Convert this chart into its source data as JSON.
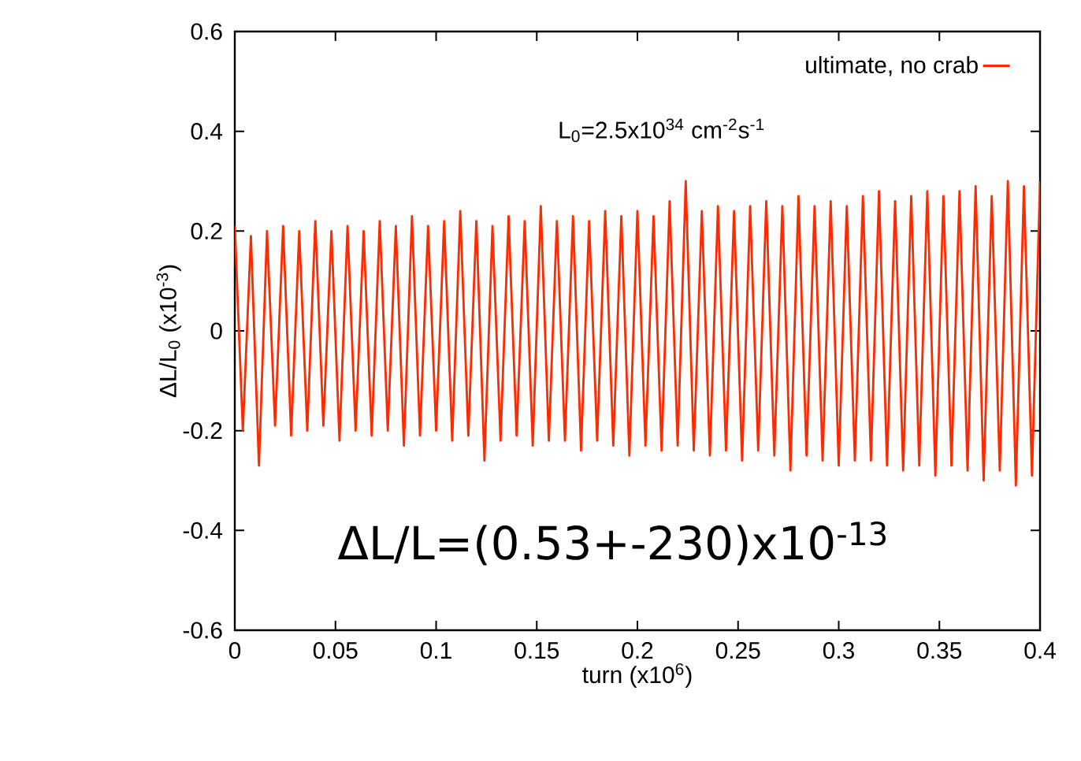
{
  "chart_data": {
    "type": "line",
    "xlabel": "turn (x10$^{6}$)",
    "ylabel": "ΔL/L$_{0}$ (x10$^{-3}$)",
    "annotations": [
      "L$_{0}$=2.5x10$^{34}$ cm$^{-2}$s$^{-1}$",
      "ΔL/L=(0.53+-230)x10$^{-13}$"
    ],
    "xlim": [
      0,
      0.4
    ],
    "ylim": [
      -0.6,
      0.6
    ],
    "xticks": [
      0,
      0.05,
      0.1,
      0.15,
      0.2,
      0.25,
      0.3,
      0.35,
      0.4
    ],
    "yticks": [
      -0.6,
      -0.4,
      -0.2,
      0,
      0.2,
      0.4,
      0.6
    ],
    "legend": "top right",
    "line_style": "solid",
    "series": [
      {
        "name": "ultimate, no crab",
        "color": "#ff2a00",
        "x": [
          0,
          0.004,
          0.008,
          0.012,
          0.016,
          0.02,
          0.024,
          0.028,
          0.032,
          0.036,
          0.04,
          0.044,
          0.048,
          0.052,
          0.056,
          0.06,
          0.064,
          0.068,
          0.072,
          0.076,
          0.08,
          0.084,
          0.088,
          0.092,
          0.096,
          0.1,
          0.104,
          0.108,
          0.112,
          0.116,
          0.12,
          0.124,
          0.128,
          0.132,
          0.136,
          0.14,
          0.144,
          0.148,
          0.152,
          0.156,
          0.16,
          0.164,
          0.168,
          0.172,
          0.176,
          0.18,
          0.184,
          0.188,
          0.192,
          0.196,
          0.2,
          0.204,
          0.208,
          0.212,
          0.216,
          0.22,
          0.224,
          0.228,
          0.232,
          0.236,
          0.24,
          0.244,
          0.248,
          0.252,
          0.256,
          0.26,
          0.264,
          0.268,
          0.272,
          0.276,
          0.28,
          0.284,
          0.288,
          0.292,
          0.296,
          0.3,
          0.304,
          0.308,
          0.312,
          0.316,
          0.32,
          0.324,
          0.328,
          0.332,
          0.336,
          0.34,
          0.344,
          0.348,
          0.352,
          0.356,
          0.36,
          0.364,
          0.368,
          0.372,
          0.376,
          0.38,
          0.384,
          0.388,
          0.392,
          0.396,
          0.4
        ],
        "values": [
          0.21,
          -0.2,
          0.19,
          -0.27,
          0.2,
          -0.19,
          0.21,
          -0.21,
          0.2,
          -0.2,
          0.22,
          -0.19,
          0.2,
          -0.22,
          0.21,
          -0.2,
          0.2,
          -0.21,
          0.22,
          -0.2,
          0.21,
          -0.23,
          0.23,
          -0.21,
          0.21,
          -0.2,
          0.22,
          -0.22,
          0.24,
          -0.21,
          0.22,
          -0.26,
          0.21,
          -0.22,
          0.23,
          -0.21,
          0.22,
          -0.23,
          0.25,
          -0.22,
          0.22,
          -0.22,
          0.23,
          -0.24,
          0.22,
          -0.22,
          0.24,
          -0.23,
          0.23,
          -0.25,
          0.24,
          -0.23,
          0.23,
          -0.24,
          0.26,
          -0.23,
          0.3,
          -0.24,
          0.24,
          -0.25,
          0.25,
          -0.24,
          0.24,
          -0.26,
          0.25,
          -0.24,
          0.26,
          -0.25,
          0.25,
          -0.28,
          0.27,
          -0.25,
          0.25,
          -0.26,
          0.26,
          -0.27,
          0.25,
          -0.26,
          0.27,
          -0.26,
          0.28,
          -0.27,
          0.26,
          -0.28,
          0.27,
          -0.27,
          0.28,
          -0.29,
          0.27,
          -0.27,
          0.28,
          -0.28,
          0.29,
          -0.3,
          0.27,
          -0.28,
          0.3,
          -0.31,
          0.29,
          -0.29,
          0.3
        ]
      }
    ]
  }
}
